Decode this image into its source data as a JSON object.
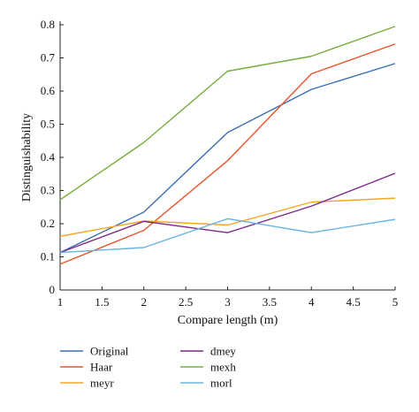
{
  "chart_data": {
    "type": "line",
    "title": "",
    "xlabel": "Compare length (m)",
    "ylabel": "Distinguishability",
    "xlim": [
      1,
      5
    ],
    "ylim": [
      0,
      0.8
    ],
    "xticks": [
      "1",
      "1.5",
      "2",
      "2.5",
      "3",
      "3.5",
      "4",
      "4.5",
      "5"
    ],
    "yticks": [
      "0",
      "0.1",
      "0.2",
      "0.3",
      "0.4",
      "0.5",
      "0.6",
      "0.7",
      "0.8"
    ],
    "grid": false,
    "legend_position": "bottom",
    "x": [
      1,
      2,
      3,
      4,
      5
    ],
    "series": [
      {
        "name": "Original",
        "color": "#3a6fb4",
        "values": [
          0.113,
          0.235,
          0.475,
          0.605,
          0.683
        ]
      },
      {
        "name": "Haar",
        "color": "#e8552a",
        "values": [
          0.078,
          0.18,
          0.39,
          0.652,
          0.742
        ]
      },
      {
        "name": "meyr",
        "color": "#f5a623",
        "values": [
          0.162,
          0.208,
          0.196,
          0.265,
          0.277
        ]
      },
      {
        "name": "dmey",
        "color": "#7d2a8c",
        "values": [
          0.113,
          0.207,
          0.173,
          0.253,
          0.352
        ]
      },
      {
        "name": "mexh",
        "color": "#77ad3d",
        "values": [
          0.272,
          0.445,
          0.66,
          0.705,
          0.795
        ]
      },
      {
        "name": "morl",
        "color": "#6bb6e0",
        "values": [
          0.113,
          0.128,
          0.215,
          0.173,
          0.213
        ]
      }
    ]
  }
}
